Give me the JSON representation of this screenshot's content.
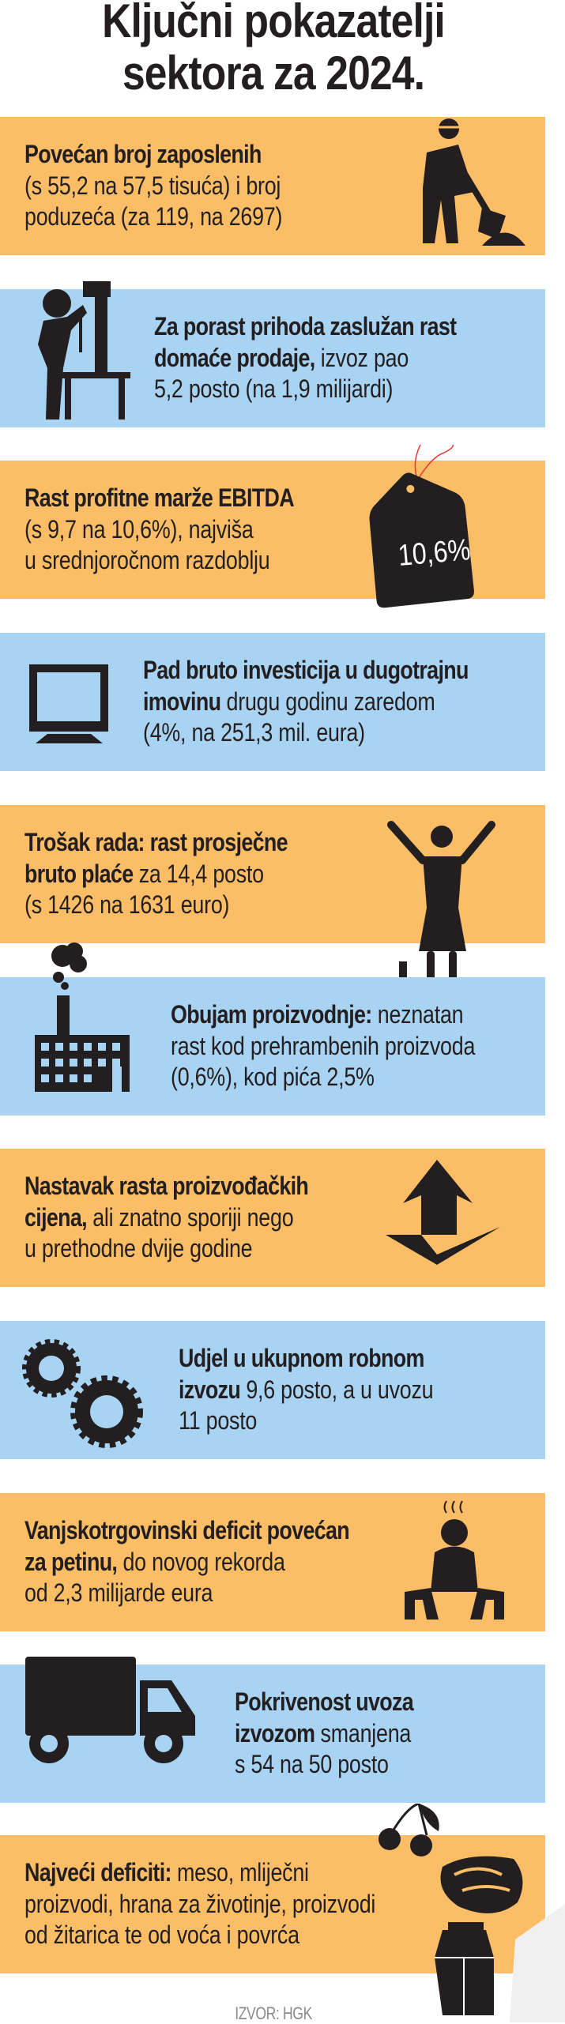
{
  "title": {
    "line1": "Ključni pokazatelji",
    "line2": "sektora za 2024."
  },
  "colors": {
    "orange": "#fbbd66",
    "blue": "#a9d3f2",
    "text": "#231f20"
  },
  "panels": [
    {
      "color": "orange",
      "icon": "worker-digging-icon",
      "lines": [
        {
          "bold": "Povećan broj zaposlenih",
          "regular": ""
        },
        {
          "bold": "",
          "regular": "(s 55,2 na 57,5 tisuća) i broj"
        },
        {
          "bold": "",
          "regular": "poduzeća (za 119, na 2697)"
        }
      ]
    },
    {
      "color": "blue",
      "icon": "drill-press-worker-icon",
      "lines": [
        {
          "bold": "Za porast prihoda zaslužan rast",
          "regular": ""
        },
        {
          "bold": "domaće prodaje,",
          "regular": " izvoz pao"
        },
        {
          "bold": "",
          "regular": "5,2 posto (na 1,9 milijardi)"
        }
      ]
    },
    {
      "color": "orange",
      "icon": "price-tag-icon",
      "tag_label": "10,6%",
      "lines": [
        {
          "bold": "Rast profitne marže EBITDA",
          "regular": ""
        },
        {
          "bold": "",
          "regular": "(s 9,7 na 10,6%), najviša"
        },
        {
          "bold": "",
          "regular": "u srednjoročnom razdoblju"
        }
      ]
    },
    {
      "color": "blue",
      "icon": "monitor-icon",
      "lines": [
        {
          "bold": "Pad bruto investicija u dugotrajnu",
          "regular": ""
        },
        {
          "bold": "imovinu",
          "regular": " drugu godinu zaredom"
        },
        {
          "bold": "",
          "regular": "(4%, na 251,3 mil. eura)"
        }
      ]
    },
    {
      "color": "orange",
      "icon": "cheering-woman-icon",
      "lines": [
        {
          "bold": "Trošak rada: rast prosječne",
          "regular": ""
        },
        {
          "bold": "bruto plaće",
          "regular": " za 14,4 posto"
        },
        {
          "bold": "",
          "regular": "(s 1426 na 1631 euro)"
        }
      ]
    },
    {
      "color": "blue",
      "icon": "factory-icon",
      "lines": [
        {
          "bold": "Obujam proizvodnje:",
          "regular": " neznatan"
        },
        {
          "bold": "",
          "regular": "rast kod prehrambenih proizvoda"
        },
        {
          "bold": "",
          "regular": "(0,6%), kod pića 2,5%"
        }
      ]
    },
    {
      "color": "orange",
      "icon": "rising-arrow-icon",
      "lines": [
        {
          "bold": "Nastavak rasta proizvođačkih",
          "regular": ""
        },
        {
          "bold": "cijena,",
          "regular": " ali znatno sporiji nego"
        },
        {
          "bold": "",
          "regular": "u prethodne dvije godine"
        }
      ]
    },
    {
      "color": "blue",
      "icon": "gears-icon",
      "lines": [
        {
          "bold": "Udjel u ukupnom robnom",
          "regular": ""
        },
        {
          "bold": "izvozu",
          "regular": " 9,6 posto, a u uvozu"
        },
        {
          "bold": "",
          "regular": "11 posto"
        }
      ]
    },
    {
      "color": "orange",
      "icon": "stressed-man-icon",
      "lines": [
        {
          "bold": "Vanjskotrgovinski deficit povećan",
          "regular": ""
        },
        {
          "bold": "za petinu,",
          "regular": " do novog rekorda"
        },
        {
          "bold": "",
          "regular": "od 2,3 milijarde eura"
        }
      ]
    },
    {
      "color": "blue",
      "icon": "truck-icon",
      "lines": [
        {
          "bold": "Pokrivenost uvoza",
          "regular": ""
        },
        {
          "bold": "izvozom",
          "regular": " smanjena"
        },
        {
          "bold": "",
          "regular": "s 54 na 50 posto"
        }
      ]
    },
    {
      "color": "orange",
      "icon": "food-products-icon",
      "lines": [
        {
          "bold": "Najveći deficiti:",
          "regular": " meso, mliječni"
        },
        {
          "bold": "",
          "regular": "proizvodi, hrana za životinje, proizvodi"
        },
        {
          "bold": "",
          "regular": "od žitarica te od voća i povrća"
        }
      ]
    }
  ],
  "source": "IZVOR: HGK"
}
